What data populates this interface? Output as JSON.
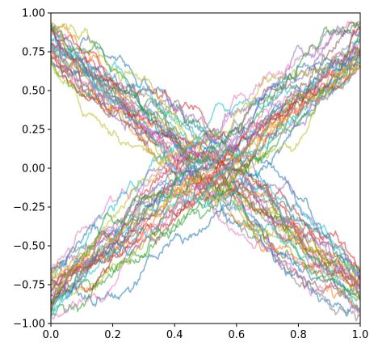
{
  "chart_data": {
    "type": "line",
    "title": "",
    "xlabel": "",
    "ylabel": "",
    "xlim": [
      0,
      1
    ],
    "ylim": [
      -1,
      1
    ],
    "grid": false,
    "legend": "none",
    "x_ticks": [
      0.0,
      0.2,
      0.4,
      0.6,
      0.8,
      1.0
    ],
    "x_tick_labels": [
      "0.0",
      "0.2",
      "0.4",
      "0.6",
      "0.8",
      "1.0"
    ],
    "y_ticks": [
      -1.0,
      -0.75,
      -0.5,
      -0.25,
      0.0,
      0.25,
      0.5,
      0.75,
      1.0
    ],
    "y_tick_labels": [
      "−1.00",
      "−0.75",
      "−0.50",
      "−0.25",
      "0.00",
      "0.25",
      "0.50",
      "0.75",
      "1.00"
    ],
    "palette": [
      "#1f77b4",
      "#ff7f0e",
      "#2ca02c",
      "#d62728",
      "#9467bd",
      "#8c564b",
      "#e377c2",
      "#7f7f7f",
      "#bcbd22",
      "#17becf"
    ],
    "description_of_series": "Many noisy random-walk paths bundled into two families forming an X: descending paths start near y=+0.8 at x=0 and end near y=-0.8 at x=1; ascending paths start near y=-0.8 and end near y=+0.8; both families cross near (0.5, 0).",
    "series_groups": [
      {
        "direction": "descending",
        "start_y": 0.8,
        "end_y": -0.8,
        "count": 30
      },
      {
        "direction": "ascending",
        "start_y": -0.8,
        "end_y": 0.8,
        "count": 30
      }
    ]
  }
}
